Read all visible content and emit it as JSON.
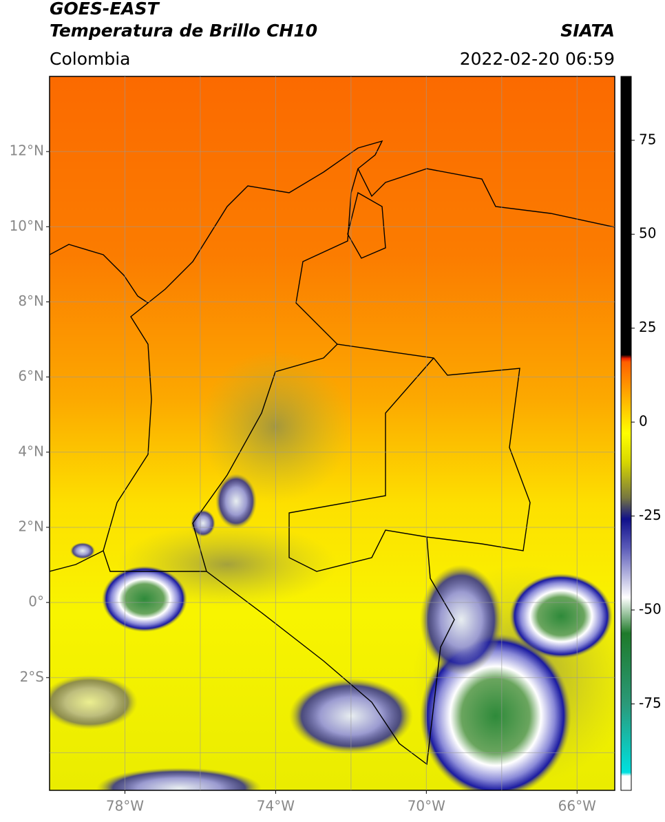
{
  "header": {
    "title": "GOES-EAST",
    "subtitle": "Temperatura de Brillo CH10",
    "source": "SIATA",
    "region": "Colombia",
    "timestamp": "2022-02-20 06:59"
  },
  "map": {
    "lon_lim": [
      -80,
      -65
    ],
    "lat_lim": [
      14,
      -5
    ],
    "lon_ticks": [
      {
        "value": -78,
        "label": "78°W"
      },
      {
        "value": -74,
        "label": "74°W"
      },
      {
        "value": -70,
        "label": "70°W"
      },
      {
        "value": -66,
        "label": "66°W"
      }
    ],
    "lat_ticks": [
      {
        "value": 12,
        "label": "12°N"
      },
      {
        "value": 10,
        "label": "10°N"
      },
      {
        "value": 8,
        "label": "8°N"
      },
      {
        "value": 6,
        "label": "6°N"
      },
      {
        "value": 4,
        "label": "4°N"
      },
      {
        "value": 2,
        "label": "2°N"
      },
      {
        "value": 0,
        "label": "0°"
      },
      {
        "value": -2,
        "label": "2°S"
      }
    ],
    "lon_gridlines": [
      -78,
      -76,
      -74,
      -72,
      -70,
      -68,
      -66
    ],
    "lat_gridlines": [
      12,
      10,
      8,
      6,
      4,
      2,
      0,
      -2,
      -4
    ]
  },
  "colorbar": {
    "lim": [
      -98,
      92
    ],
    "ticks": [
      75,
      50,
      25,
      0,
      -25,
      -50,
      -75
    ]
  }
}
